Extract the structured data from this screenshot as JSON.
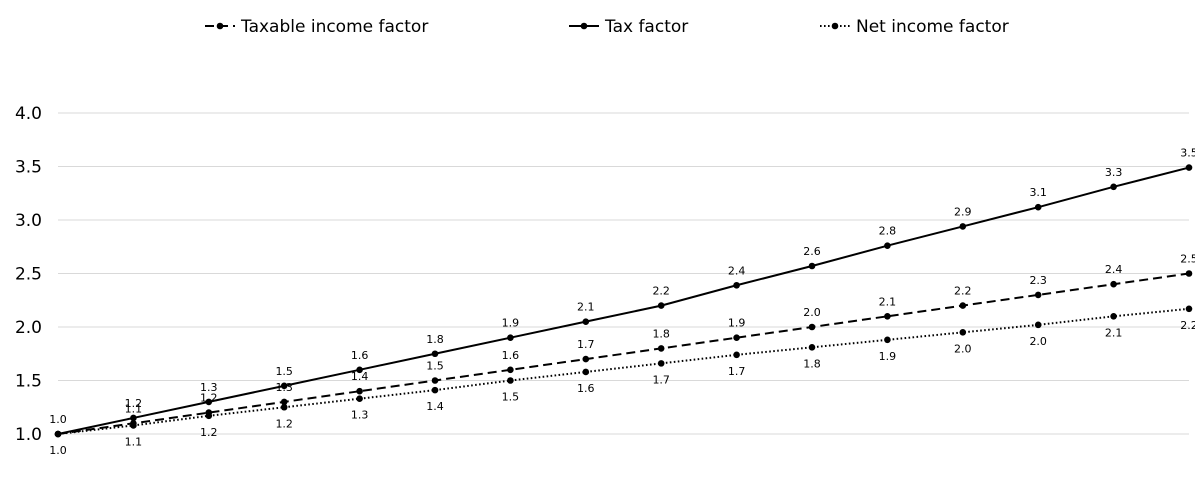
{
  "chart_data": {
    "type": "line",
    "title": "",
    "xlabel": "",
    "ylabel": "",
    "ylim": [
      1.0,
      4.0
    ],
    "yticks": [
      "1.0",
      "1.5",
      "2.0",
      "2.5",
      "3.0",
      "3.5",
      "4.0"
    ],
    "grid": true,
    "legend_position": "top",
    "x": [
      0,
      1,
      2,
      3,
      4,
      5,
      6,
      7,
      8,
      9,
      10,
      11,
      12,
      13,
      14,
      15
    ],
    "series": [
      {
        "name": "Taxable income factor",
        "style": "dashed",
        "color": "#000000",
        "values": [
          1.0,
          1.1,
          1.2,
          1.3,
          1.4,
          1.5,
          1.6,
          1.7,
          1.8,
          1.9,
          2.0,
          2.1,
          2.2,
          2.3,
          2.4,
          2.5
        ],
        "labels": [
          "",
          "1.1",
          "1.2",
          "1.3",
          "1.4",
          "1.5",
          "1.6",
          "1.7",
          "1.8",
          "1.9",
          "2.0",
          "2.1",
          "2.2",
          "2.3",
          "2.4",
          "2.5"
        ],
        "label_position": "above"
      },
      {
        "name": "Tax factor",
        "style": "solid",
        "color": "#000000",
        "values": [
          1.0,
          1.15,
          1.3,
          1.45,
          1.6,
          1.75,
          1.9,
          2.05,
          2.2,
          2.39,
          2.57,
          2.76,
          2.94,
          3.12,
          3.31,
          3.49
        ],
        "labels": [
          "1.0",
          "1.2",
          "1.3",
          "1.5",
          "1.6",
          "1.8",
          "1.9",
          "2.1",
          "2.2",
          "2.4",
          "2.6",
          "2.8",
          "2.9",
          "3.1",
          "3.3",
          "3.5"
        ],
        "label_position": "above"
      },
      {
        "name": "Net income factor",
        "style": "dotted",
        "color": "#000000",
        "values": [
          1.0,
          1.08,
          1.17,
          1.25,
          1.33,
          1.41,
          1.5,
          1.58,
          1.66,
          1.74,
          1.81,
          1.88,
          1.95,
          2.02,
          2.1,
          2.17
        ],
        "labels": [
          "1.0",
          "1.1",
          "1.2",
          "1.2",
          "1.3",
          "1.4",
          "1.5",
          "1.6",
          "1.7",
          "1.7",
          "1.8",
          "1.9",
          "2.0",
          "2.0",
          "2.1",
          "2.2"
        ],
        "label_position": "below"
      }
    ]
  }
}
